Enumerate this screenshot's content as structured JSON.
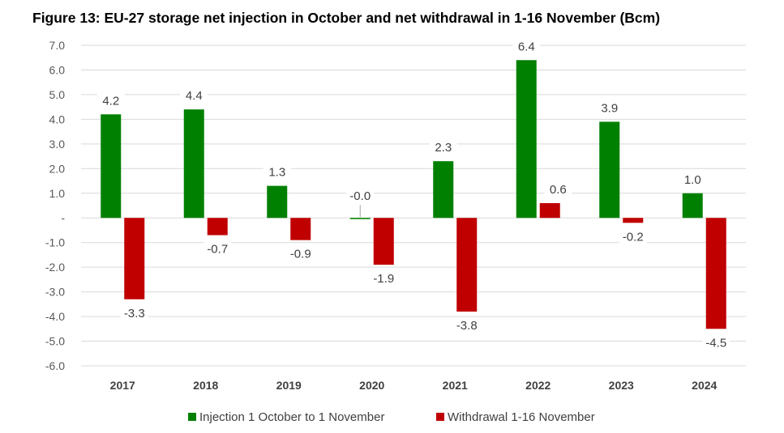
{
  "chart_data": {
    "type": "bar",
    "title": "Figure 13: EU-27 storage net injection in October and net withdrawal in 1-16 November (Bcm)",
    "categories": [
      "2017",
      "2018",
      "2019",
      "2020",
      "2021",
      "2022",
      "2023",
      "2024"
    ],
    "series": [
      {
        "name": "Injection 1 October to 1 November",
        "color": "#008000",
        "values": [
          4.2,
          4.4,
          1.3,
          -0.03,
          2.3,
          6.4,
          3.9,
          1.0
        ]
      },
      {
        "name": "Withdrawal 1-16 November",
        "color": "#c00000",
        "values": [
          -3.3,
          -0.7,
          -0.9,
          -1.9,
          -3.8,
          0.6,
          -0.2,
          -4.5
        ]
      }
    ],
    "ylim": [
      -6,
      7
    ],
    "yticks": [
      "7.0",
      "6.0",
      "5.0",
      "4.0",
      "3.0",
      "2.0",
      "1.0",
      "-",
      "-1.0",
      "-2.0",
      "-3.0",
      "-4.0",
      "-5.0",
      "-6.0"
    ],
    "grid": true,
    "legend": "bottom"
  }
}
